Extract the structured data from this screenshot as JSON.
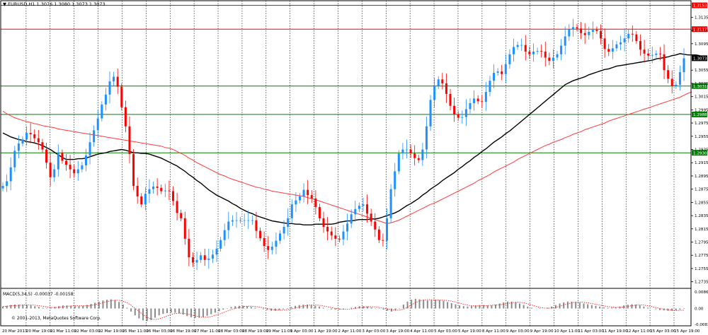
{
  "chart_data": {
    "type": "candlestick",
    "header": "▼ EURUSD,H1  1.3076 1.3080 1.3073 1.3073",
    "copyright": "© 2001-2013, MetaQuotes Software Corp.",
    "ylim": [
      1.2725,
      1.316
    ],
    "price_ticks": [
      "1.3135",
      "1.3115",
      "1.3095",
      "1.3055",
      "1.3035",
      "1.3015",
      "1.2995",
      "1.2975",
      "1.2955",
      "1.2935",
      "1.2915",
      "1.2895",
      "1.2875",
      "1.2855",
      "1.2835",
      "1.2815",
      "1.2795",
      "1.2775",
      "1.2755",
      "1.2735"
    ],
    "time_labels": [
      "20 Mar 2013",
      "20 Mar 19:00",
      "21 Mar 11:00",
      "22 Mar 03:00",
      "22 Mar 19:00",
      "25 Mar 11:00",
      "26 Mar 03:00",
      "26 Mar 19:00",
      "27 Mar 11:00",
      "28 Mar 03:00",
      "28 Mar 19:00",
      "29 Mar 11:00",
      "1 Apr 03:00",
      "1 Apr 19:00",
      "2 Apr 11:00",
      "3 Apr 03:00",
      "3 Apr 19:00",
      "4 Apr 11:00",
      "5 Apr 03:00",
      "5 Apr 19:00",
      "8 Apr 11:00",
      "9 Apr 03:00",
      "9 Apr 19:00",
      "10 Apr 11:00",
      "11 Apr 03:00",
      "11 Apr 19:00",
      "12 Apr 11:00",
      "15 Apr 03:00",
      "15 Apr 19:00"
    ],
    "levels": [
      {
        "label": "1.3153",
        "value": 1.3153,
        "color": "#ff0000"
      },
      {
        "label": "1.3117",
        "value": 1.3117,
        "color": "#ff0000"
      },
      {
        "label": "1.3073",
        "value": 1.3073,
        "color": "#000000"
      },
      {
        "label": "1.3031",
        "value": 1.3031,
        "color": "#008000"
      },
      {
        "label": "1.2988",
        "value": 1.2988,
        "color": "#008000"
      },
      {
        "label": "1.2930",
        "value": 1.293,
        "color": "#008000"
      }
    ],
    "closes": [
      1.288,
      1.2887,
      1.2908,
      1.2933,
      1.2944,
      1.295,
      1.296,
      1.2958,
      1.2952,
      1.2946,
      1.2935,
      1.2915,
      1.2893,
      1.2905,
      1.293,
      1.2918,
      1.2912,
      1.2905,
      1.2899,
      1.2905,
      1.2911,
      1.2926,
      1.2946,
      1.2964,
      1.2982,
      1.3003,
      1.3018,
      1.3038,
      1.3045,
      1.303,
      1.2999,
      1.297,
      1.2928,
      1.288,
      1.2864,
      1.2852,
      1.2868,
      1.2875,
      1.2879,
      1.2877,
      1.2872,
      1.2873,
      1.2872,
      1.2857,
      1.2839,
      1.2831,
      1.28,
      1.2772,
      1.2764,
      1.2768,
      1.2775,
      1.2768,
      1.277,
      1.2776,
      1.2785,
      1.2798,
      1.2813,
      1.2826,
      1.2828,
      1.2828,
      1.2828,
      1.2828,
      1.2828,
      1.2828,
      1.2812,
      1.2801,
      1.2789,
      1.2783,
      1.2788,
      1.2797,
      1.2808,
      1.2818,
      1.2831,
      1.2852,
      1.2858,
      1.2864,
      1.2874,
      1.2866,
      1.2861,
      1.2848,
      1.2831,
      1.2818,
      1.2811,
      1.2805,
      1.28,
      1.2799,
      1.2811,
      1.2823,
      1.2837,
      1.2845,
      1.285,
      1.2852,
      1.2838,
      1.2826,
      1.2814,
      1.2798,
      1.2797,
      1.2831,
      1.2875,
      1.2902,
      1.2929,
      1.2935,
      1.2935,
      1.2929,
      1.2922,
      1.2919,
      1.2935,
      1.297,
      1.301,
      1.3031,
      1.3041,
      1.3035,
      1.3019,
      1.3001,
      1.2988,
      1.2983,
      1.2984,
      1.2996,
      1.3005,
      1.3012,
      1.3008,
      1.3007,
      1.3022,
      1.3039,
      1.3051,
      1.3053,
      1.3049,
      1.3064,
      1.3079,
      1.309,
      1.3093,
      1.3093,
      1.3083,
      1.3079,
      1.3083,
      1.3084,
      1.3083,
      1.3074,
      1.3069,
      1.3074,
      1.3079,
      1.3092,
      1.3106,
      1.3117,
      1.312,
      1.3118,
      1.3111,
      1.3108,
      1.3113,
      1.3116,
      1.3114,
      1.3103,
      1.3087,
      1.3083,
      1.3088,
      1.3094,
      1.3097,
      1.3103,
      1.311,
      1.3109,
      1.3099,
      1.3086,
      1.308,
      1.3077,
      1.3078,
      1.308,
      1.3079,
      1.3055,
      1.3042,
      1.3031,
      1.3033,
      1.3052,
      1.3073
    ],
    "ema_black": [
      1.296,
      1.2957,
      1.2954,
      1.2952,
      1.295,
      1.2949,
      1.2947,
      1.2946,
      1.2945,
      1.2943,
      1.2941,
      1.2938,
      1.2935,
      1.2931,
      1.2927,
      1.2923,
      1.292,
      1.292,
      1.292,
      1.2921,
      1.2921,
      1.2922,
      1.2924,
      1.2926,
      1.2928,
      1.2929,
      1.293,
      1.2932,
      1.2933,
      1.2934,
      1.2935,
      1.2934,
      1.2932,
      1.293,
      1.293,
      1.2929,
      1.2929,
      1.2928,
      1.2926,
      1.2924,
      1.2922,
      1.2919,
      1.2916,
      1.2913,
      1.291,
      1.2906,
      1.2902,
      1.2897,
      1.2893,
      1.2888,
      1.2884,
      1.2879,
      1.2874,
      1.287,
      1.2866,
      1.2863,
      1.286,
      1.2857,
      1.2853,
      1.285,
      1.2846,
      1.2843,
      1.284,
      1.2838,
      1.2835,
      1.2833,
      1.2831,
      1.2829,
      1.2827,
      1.2826,
      1.2825,
      1.2824,
      1.2823,
      1.2823,
      1.2822,
      1.2822,
      1.2821,
      1.2821,
      1.2821,
      1.2822,
      1.2822,
      1.2822,
      1.2822,
      1.2822,
      1.2823,
      1.2825,
      1.2826,
      1.2827,
      1.2827,
      1.2828,
      1.2829,
      1.2829,
      1.2829,
      1.283,
      1.283,
      1.2831,
      1.2833,
      1.2835,
      1.2837,
      1.2839,
      1.2842,
      1.2846,
      1.285,
      1.2853,
      1.2857,
      1.2861,
      1.2866,
      1.287,
      1.2875,
      1.2879,
      1.2883,
      1.2888,
      1.2892,
      1.2896,
      1.29,
      1.2905,
      1.2909,
      1.2914,
      1.2918,
      1.2923,
      1.2927,
      1.2932,
      1.2936,
      1.2941,
      1.2946,
      1.295,
      1.2954,
      1.2959,
      1.2963,
      1.2968,
      1.2973,
      1.2978,
      1.2983,
      1.2988,
      1.2993,
      1.2998,
      1.3003,
      1.3008,
      1.3013,
      1.3018,
      1.3023,
      1.3028,
      1.3033,
      1.3036,
      1.3039,
      1.3041,
      1.3043,
      1.3045,
      1.3048,
      1.305,
      1.3052,
      1.3054,
      1.3056,
      1.3057,
      1.3059,
      1.3061,
      1.3062,
      1.3063,
      1.3064,
      1.3065,
      1.3066,
      1.3067,
      1.3068,
      1.3069,
      1.307,
      1.3072,
      1.3073,
      1.3074,
      1.3075,
      1.3077,
      1.3078,
      1.308,
      1.3079,
      1.3078,
      1.3078,
      1.3078,
      1.3077
    ],
    "ema_red": [
      1.2993,
      1.2989,
      1.2986,
      1.2983,
      1.2981,
      1.2979,
      1.2977,
      1.2976,
      1.2974,
      1.2973,
      1.2971,
      1.297,
      1.2969,
      1.2968,
      1.2966,
      1.2965,
      1.2964,
      1.2963,
      1.2962,
      1.2961,
      1.296,
      1.2959,
      1.2958,
      1.2957,
      1.2956,
      1.2955,
      1.2954,
      1.2953,
      1.2952,
      1.2951,
      1.295,
      1.2949,
      1.2948,
      1.2947,
      1.2946,
      1.2945,
      1.2944,
      1.2943,
      1.2942,
      1.2941,
      1.294,
      1.2938,
      1.2937,
      1.2935,
      1.2932,
      1.2929,
      1.2926,
      1.2922,
      1.2919,
      1.2915,
      1.2912,
      1.2909,
      1.2906,
      1.2903,
      1.29,
      1.2897,
      1.2895,
      1.2892,
      1.289,
      1.2888,
      1.2886,
      1.2884,
      1.2882,
      1.288,
      1.2878,
      1.2877,
      1.2875,
      1.2874,
      1.2872,
      1.2871,
      1.287,
      1.2869,
      1.2868,
      1.2867,
      1.2866,
      1.2865,
      1.2864,
      1.2862,
      1.2861,
      1.2859,
      1.2857,
      1.2855,
      1.2853,
      1.2851,
      1.2849,
      1.2847,
      1.2845,
      1.2843,
      1.2841,
      1.2839,
      1.2837,
      1.2835,
      1.2833,
      1.2831,
      1.2829,
      1.2827,
      1.2825,
      1.2823,
      1.2824,
      1.2826,
      1.2828,
      1.2831,
      1.2834,
      1.2837,
      1.284,
      1.2843,
      1.2846,
      1.2849,
      1.2852,
      1.2854,
      1.2857,
      1.286,
      1.2863,
      1.2866,
      1.2869,
      1.2872,
      1.2875,
      1.2878,
      1.2881,
      1.2884,
      1.2888,
      1.2891,
      1.2894,
      1.2897,
      1.2901,
      1.2904,
      1.2907,
      1.291,
      1.2913,
      1.2916,
      1.292,
      1.2923,
      1.2926,
      1.2929,
      1.2932,
      1.2935,
      1.2938,
      1.2941,
      1.2943,
      1.2946,
      1.2948,
      1.295,
      1.2953,
      1.2955,
      1.2958,
      1.296,
      1.2962,
      1.2965,
      1.2967,
      1.2969,
      1.2971,
      1.2973,
      1.2975,
      1.2978,
      1.298,
      1.2982,
      1.2984,
      1.2986,
      1.2988,
      1.299,
      1.2992,
      1.2994,
      1.2996,
      1.2998,
      1.3,
      1.3002,
      1.3004,
      1.3006,
      1.3008,
      1.301,
      1.3012,
      1.3014,
      1.3017,
      1.302,
      1.3022
    ],
    "macd": {
      "label": "MACD(5,34,5) -0.00037 -0.00158",
      "ylim": [
        -0.00831,
        0.00867
      ],
      "ticks": [
        "0.00867",
        "0.00",
        "-0.00831"
      ],
      "values": [
        0.001,
        0.0014,
        0.0018,
        0.002,
        0.002,
        0.0019,
        0.0018,
        0.0016,
        0.0012,
        0.0008,
        0.0004,
        0.0002,
        0.0004,
        0.0008,
        0.0012,
        0.0016,
        0.0016,
        0.0014,
        0.0012,
        0.0012,
        0.0014,
        0.0018,
        0.0024,
        0.003,
        0.0036,
        0.0042,
        0.0046,
        0.0048,
        0.0044,
        0.0034,
        0.002,
        0.0004,
        -0.0016,
        -0.0036,
        -0.0052,
        -0.0062,
        -0.0066,
        -0.006,
        -0.0048,
        -0.0036,
        -0.0028,
        -0.0024,
        -0.0022,
        -0.0022,
        -0.0026,
        -0.0032,
        -0.004,
        -0.0046,
        -0.005,
        -0.0048,
        -0.0044,
        -0.0038,
        -0.003,
        -0.0022,
        -0.0014,
        -0.0006,
        0.0002,
        0.0008,
        0.0012,
        0.0014,
        0.0014,
        0.0012,
        0.0008,
        0.0004,
        0.0,
        -0.0004,
        -0.0008,
        -0.0012,
        -0.0012,
        -0.0008,
        -0.0004,
        0.0002,
        0.0008,
        0.0014,
        0.0018,
        0.002,
        0.002,
        0.0018,
        0.0014,
        0.001,
        0.0004,
        0.0,
        -0.0004,
        -0.0006,
        -0.0006,
        -0.0004,
        0.0,
        0.0004,
        0.0008,
        0.0012,
        0.0012,
        0.001,
        0.0006,
        0.0002,
        -0.0002,
        -0.0006,
        -0.0012,
        -0.0016,
        -0.001,
        0.0002,
        0.002,
        0.0036,
        0.0046,
        0.005,
        0.0048,
        0.0044,
        0.0042,
        0.0044,
        0.0046,
        0.0044,
        0.004,
        0.0034,
        0.0028,
        0.0022,
        0.0016,
        0.0012,
        0.001,
        0.0012,
        0.0016,
        0.0018,
        0.0018,
        0.0016,
        0.0016,
        0.002,
        0.0026,
        0.0032,
        0.0036,
        0.0036,
        0.0032,
        0.0026,
        0.0018,
        0.001,
        0.0004,
        0.0,
        -0.0002,
        0.0,
        0.0004,
        0.001,
        0.0018,
        0.0026,
        0.0032,
        0.0036,
        0.0036,
        0.0034,
        0.003,
        0.0026,
        0.0022,
        0.0018,
        0.0014,
        0.001,
        0.0006,
        0.0004,
        0.0004,
        0.0006,
        0.001,
        0.0016,
        0.002,
        0.0022,
        0.002,
        0.0016,
        0.001,
        0.0004,
        0.0,
        -0.0004,
        -0.0008,
        -0.001,
        -0.0012,
        -0.0012,
        -0.001,
        -0.0006,
        -0.0002
      ]
    }
  }
}
